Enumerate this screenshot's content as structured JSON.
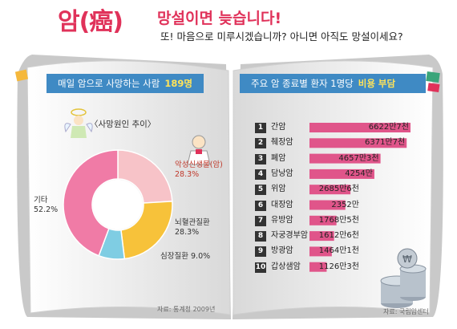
{
  "headline": {
    "title_word": "암(癌)",
    "title_rest": "망설이면 늦습니다!",
    "subtitle": "또! 마음으로 미루시겠습니까? 아니면 아직도 망설이세요?"
  },
  "left_page": {
    "banner_text": "매일 암으로 사망하는 사람",
    "banner_highlight": "189명",
    "section_title": "〈사망원인 추이〉",
    "source": "자료: 통계청 2009년"
  },
  "right_page": {
    "banner_text": "주요 암 종료별 환자 1명당",
    "banner_highlight": "비용 부담",
    "source": "자료: 국립암센터"
  },
  "colors": {
    "accent_red": "#e0325a",
    "banner_blue": "#3f8ac4",
    "bar_pink": "#e0558a",
    "pie_gita": "#f07ba6",
    "pie_akseong": "#f7c3c8",
    "pie_noehyeol": "#f7c23a",
    "pie_simjang": "#7fcde3"
  },
  "chart_data": [
    {
      "type": "pie",
      "title": "〈사망원인 추이〉",
      "donut": true,
      "slices": [
        {
          "label": "악성신생물(암)",
          "value": 28.3,
          "value_label": "28.3%"
        },
        {
          "label": "뇌혈관질환",
          "value": 28.3,
          "value_label": "28.3%"
        },
        {
          "label": "심장질환",
          "value": 9.0,
          "value_label": "9.0%"
        },
        {
          "label": "기타",
          "value": 52.2,
          "value_label": "52.2%"
        }
      ]
    },
    {
      "type": "bar",
      "orientation": "horizontal",
      "title": "주요 암 종료별 환자 1명당 비용 부담",
      "unit": "만원",
      "categories": [
        "간암",
        "췌장암",
        "폐암",
        "담낭암",
        "위암",
        "대장암",
        "유방암",
        "자궁경부암",
        "방광암",
        "갑상샘암"
      ],
      "ranks": [
        "1",
        "2",
        "3",
        "4",
        "5",
        "6",
        "7",
        "8",
        "9",
        "10"
      ],
      "values": [
        6622.7,
        6371.7,
        4657.3,
        4254,
        2685.6,
        2352,
        1768.5,
        1612.6,
        1464.1,
        1126.3
      ],
      "value_labels": [
        "6622만7천",
        "6371만7천",
        "4657만3천",
        "4254만",
        "2685만6천",
        "2352만",
        "1768만5천",
        "1612만6천",
        "1464만1천",
        "1126만3천"
      ]
    }
  ]
}
